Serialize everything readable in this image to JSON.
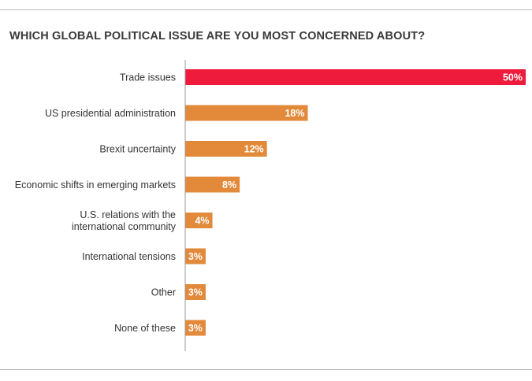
{
  "title": "WHICH GLOBAL POLITICAL ISSUE ARE YOU MOST CONCERNED ABOUT?",
  "colors": {
    "highlight": "#ee1b3c",
    "default": "#e2893a",
    "axis": "#9a9a9a",
    "rule": "#b9b9b9"
  },
  "chart_data": {
    "type": "bar",
    "orientation": "horizontal",
    "title": "WHICH GLOBAL POLITICAL ISSUE ARE YOU MOST CONCERNED ABOUT?",
    "xlabel": "",
    "ylabel": "",
    "xlim": [
      0,
      50
    ],
    "unit": "%",
    "grid": false,
    "categories": [
      [
        "Trade issues"
      ],
      [
        "US presidential administration"
      ],
      [
        "Brexit uncertainty"
      ],
      [
        "Economic shifts in emerging markets"
      ],
      [
        "U.S. relations with the",
        "international community"
      ],
      [
        "International tensions"
      ],
      [
        "Other"
      ],
      [
        "None of these"
      ]
    ],
    "values": [
      50,
      18,
      12,
      8,
      4,
      3,
      3,
      3
    ],
    "value_labels": [
      "50%",
      "18%",
      "12%",
      "8%",
      "4%",
      "3%",
      "3%",
      "3%"
    ],
    "highlight_index": 0
  }
}
